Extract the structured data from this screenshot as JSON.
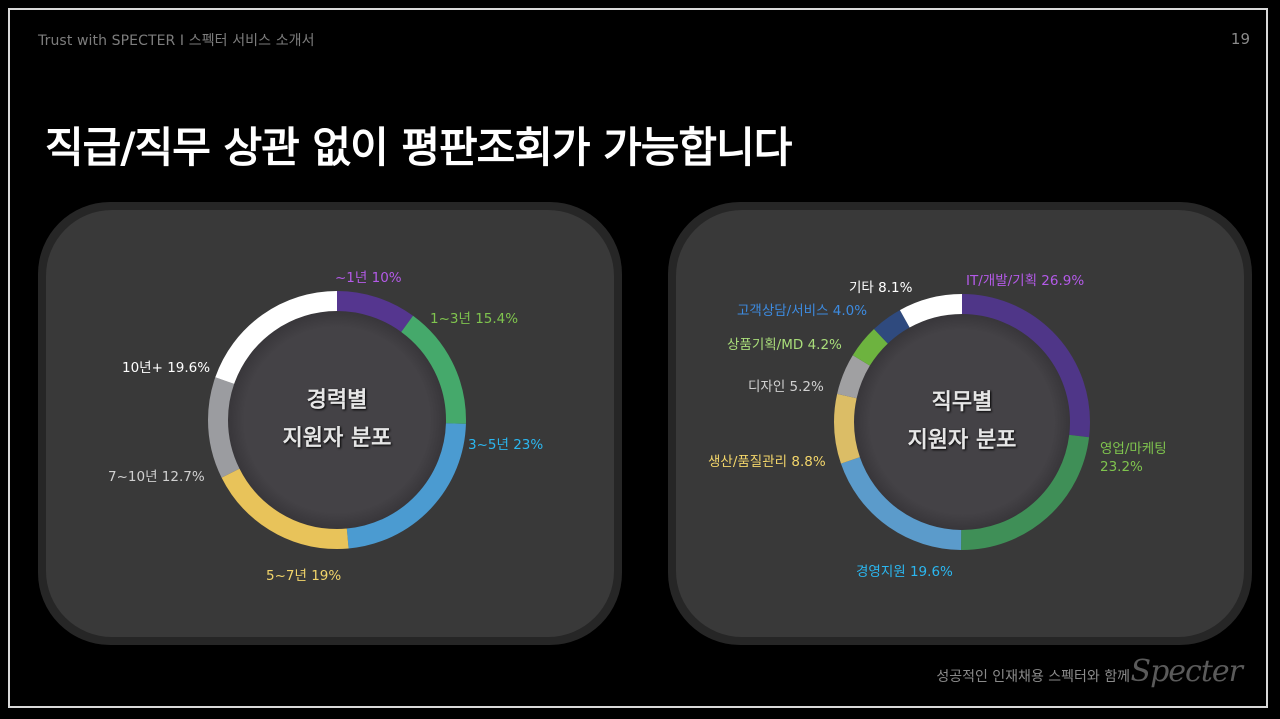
{
  "header": {
    "subtitle": "Trust with SPECTER  I 스펙터 서비스 소개서",
    "page_number": "19"
  },
  "title": "직급/직무 상관 없이 평판조회가 가능합니다",
  "footer": {
    "tagline": "성공적인 인재채용 스펙터와 함께",
    "logo": "Specter"
  },
  "chart_data": [
    {
      "type": "pie",
      "subtype": "donut",
      "title": "경력별 지원자 분포",
      "center_label": [
        "경력별",
        "지원자 분포"
      ],
      "categories": [
        "~1년",
        "1~3년",
        "3~5년",
        "5~7년",
        "7~10년",
        "10년+"
      ],
      "values": [
        10,
        15.4,
        23,
        19,
        12.7,
        19.6
      ],
      "labels": [
        "~1년 10%",
        "1~3년 15.4%",
        "3~5년 23%",
        "5~7년 19%",
        "7~10년 12.7%",
        "10년+ 19.6%"
      ],
      "colors": [
        "#55368f",
        "#45a96b",
        "#4b9bd1",
        "#e8c35a",
        "#9b9ca0",
        "#ffffff"
      ],
      "label_colors": [
        "#b45ae8",
        "#7fc44e",
        "#2bb7f0",
        "#f2d56a",
        "#d0d0d0",
        "#ffffff"
      ],
      "start_angle": "top",
      "direction": "clockwise"
    },
    {
      "type": "pie",
      "subtype": "donut",
      "title": "직무별 지원자 분포",
      "center_label": [
        "직무별",
        "지원자 분포"
      ],
      "categories": [
        "IT/개발/기획",
        "영업/마케팅",
        "경영지원",
        "생산/품질관리",
        "디자인",
        "상품기획/MD",
        "고객상담/서비스",
        "기타"
      ],
      "values": [
        26.9,
        23.2,
        19.6,
        8.8,
        5.2,
        4.2,
        4.0,
        8.1
      ],
      "labels": [
        "IT/개발/기획 26.9%",
        "영업/마케팅 23.2%",
        "경영지원 19.6%",
        "생산/품질관리 8.8%",
        "디자인 5.2%",
        "상품기획/MD 4.2%",
        "고객상담/서비스 4.0%",
        "기타 8.1%"
      ],
      "colors": [
        "#4f3688",
        "#3f8f57",
        "#5b9bcb",
        "#dbbd66",
        "#a0a0a2",
        "#6db33f",
        "#2f4a7e",
        "#ffffff"
      ],
      "label_colors": [
        "#b45ae8",
        "#7fc44e",
        "#2bb7f0",
        "#f2d56a",
        "#d0d0d0",
        "#a9dd7a",
        "#3d8be0",
        "#ffffff"
      ],
      "start_angle": "top",
      "direction": "clockwise"
    }
  ]
}
